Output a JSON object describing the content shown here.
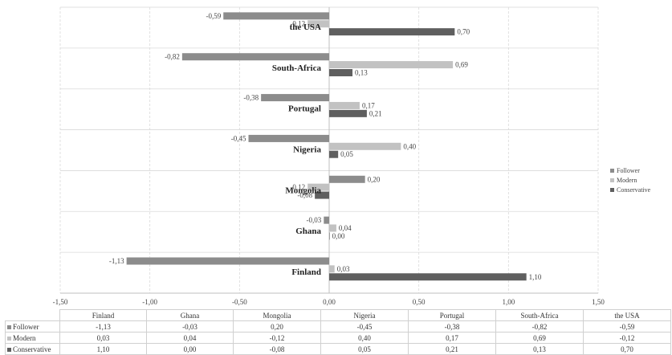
{
  "chart_data": {
    "type": "bar",
    "orientation": "horizontal",
    "categories": [
      "Finland",
      "Ghana",
      "Mongolia",
      "Nigeria",
      "Portugal",
      "South-Africa",
      "the USA"
    ],
    "series": [
      {
        "name": "Follower",
        "color": "#8c8c8c",
        "values": [
          -1.13,
          -0.03,
          0.2,
          -0.45,
          -0.38,
          -0.82,
          -0.59
        ],
        "labels": [
          "-1,13",
          "-0,03",
          "0,20",
          "-0,45",
          "-0,38",
          "-0,82",
          "-0,59"
        ]
      },
      {
        "name": "Modern",
        "color": "#c2c2c2",
        "values": [
          0.03,
          0.04,
          -0.12,
          0.4,
          0.17,
          0.69,
          -0.12
        ],
        "labels": [
          "0,03",
          "0,04",
          "-0,12",
          "0,40",
          "0,17",
          "0,69",
          "-0,12"
        ]
      },
      {
        "name": "Conservative",
        "color": "#5f5f5f",
        "values": [
          1.1,
          0.0,
          -0.08,
          0.05,
          0.21,
          0.13,
          0.7
        ],
        "labels": [
          "1,10",
          "0,00",
          "-0,08",
          "0,05",
          "0,21",
          "0,13",
          "0,70"
        ]
      }
    ],
    "xlim": [
      -1.5,
      1.5
    ],
    "xticks": [
      "-1,50",
      "-1,00",
      "-0,50",
      "0,00",
      "0,50",
      "1,00",
      "1,50"
    ],
    "xtick_values": [
      -1.5,
      -1.0,
      -0.5,
      0.0,
      0.5,
      1.0,
      1.5
    ],
    "grid": true,
    "legend": "right",
    "data_table": true
  }
}
